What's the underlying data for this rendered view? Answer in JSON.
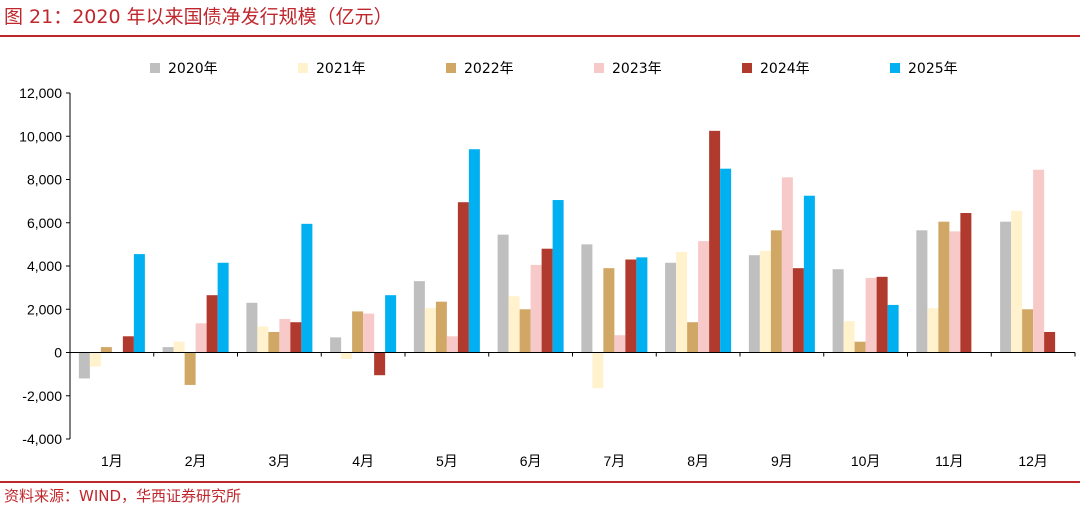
{
  "title": "图 21：2020 年以来国债净发行规模（亿元）",
  "source": "资料来源：WIND，华西证券研究所",
  "chart_data": {
    "type": "bar",
    "title": "2020 年以来国债净发行规模（亿元）",
    "xlabel": "",
    "ylabel": "",
    "ylim": [
      -4000,
      12000
    ],
    "yticks": [
      -4000,
      -2000,
      0,
      2000,
      4000,
      6000,
      8000,
      10000,
      12000
    ],
    "ytick_labels": [
      "-4,000",
      "-2,000",
      "0",
      "2,000",
      "4,000",
      "6,000",
      "8,000",
      "10,000",
      "12,000"
    ],
    "legend_position": "top",
    "categories": [
      "1月",
      "2月",
      "3月",
      "4月",
      "5月",
      "6月",
      "7月",
      "8月",
      "9月",
      "10月",
      "11月",
      "12月"
    ],
    "series": [
      {
        "name": "2020年",
        "color": "#bfbfbf",
        "values": [
          -1200,
          250,
          2300,
          700,
          3300,
          5450,
          5000,
          4150,
          4500,
          3850,
          5650,
          6050
        ]
      },
      {
        "name": "2021年",
        "color": "#fff2cc",
        "values": [
          -650,
          500,
          1200,
          -300,
          2050,
          2600,
          -1650,
          4650,
          4700,
          1450,
          2050,
          6550
        ]
      },
      {
        "name": "2022年",
        "color": "#d1a766",
        "values": [
          250,
          -1500,
          950,
          1900,
          2350,
          2000,
          3900,
          1400,
          5650,
          500,
          6050,
          2000
        ]
      },
      {
        "name": "2023年",
        "color": "#f7c9c9",
        "values": [
          0,
          1350,
          1550,
          1800,
          750,
          4050,
          800,
          5150,
          8100,
          3450,
          5600,
          8450
        ]
      },
      {
        "name": "2024年",
        "color": "#b03a2e",
        "values": [
          750,
          2650,
          1400,
          -1050,
          6950,
          4800,
          4300,
          10250,
          3900,
          3500,
          6450,
          950
        ]
      },
      {
        "name": "2025年",
        "color": "#00b0f0",
        "values": [
          4550,
          4150,
          5950,
          2650,
          9400,
          7050,
          4400,
          8500,
          7250,
          2200,
          null,
          null
        ]
      }
    ]
  }
}
